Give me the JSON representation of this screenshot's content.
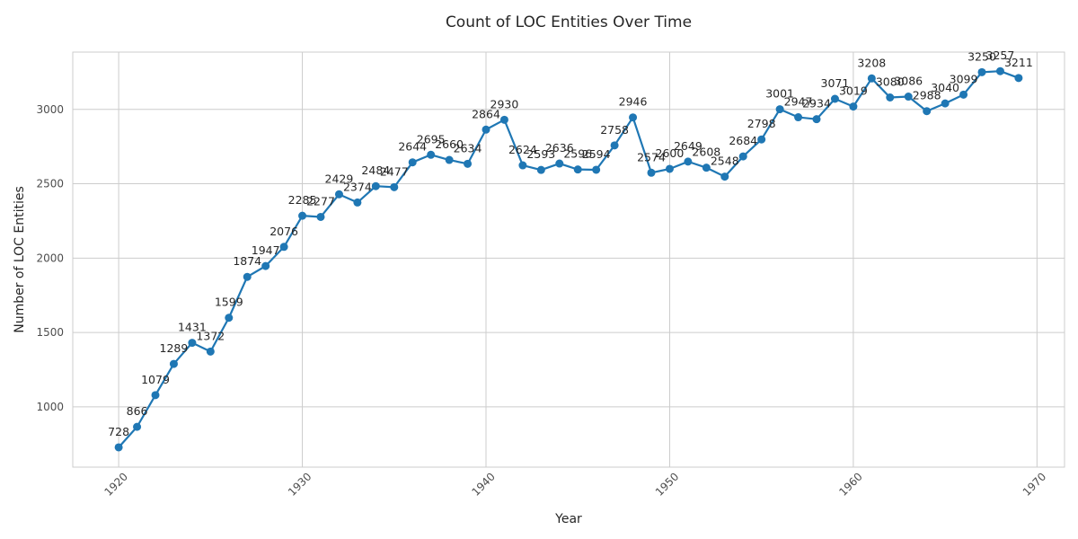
{
  "chart_data": {
    "type": "line",
    "title": "Count of LOC Entities Over Time",
    "xlabel": "Year",
    "ylabel": "Number of LOC Entities",
    "xlim": [
      1917.5,
      1971.5
    ],
    "ylim": [
      595,
      3385
    ],
    "x_ticks": [
      1920,
      1930,
      1940,
      1950,
      1960,
      1970
    ],
    "y_ticks": [
      1000,
      1500,
      2000,
      2500,
      3000
    ],
    "grid": true,
    "legend": "none",
    "color": "#1f77b4",
    "series": [
      {
        "x": [
          1920,
          1921,
          1922,
          1923,
          1924,
          1925,
          1926,
          1927,
          1928,
          1929,
          1930,
          1931,
          1932,
          1933,
          1934,
          1935,
          1936,
          1937,
          1938,
          1939,
          1940,
          1941,
          1942,
          1943,
          1944,
          1945,
          1946,
          1947,
          1948,
          1949,
          1950,
          1951,
          1952,
          1953,
          1954,
          1955,
          1956,
          1957,
          1958,
          1959,
          1960,
          1961,
          1962,
          1963,
          1964,
          1965,
          1966,
          1967,
          1968,
          1969
        ],
        "values": [
          728,
          866,
          1079,
          1289,
          1431,
          1372,
          1599,
          1874,
          1947,
          2076,
          2285,
          2277,
          2429,
          2374,
          2484,
          2477,
          2644,
          2695,
          2660,
          2634,
          2864,
          2930,
          2624,
          2593,
          2636,
          2596,
          2594,
          2758,
          2946,
          2574,
          2600,
          2649,
          2608,
          2548,
          2684,
          2798,
          3001,
          2947,
          2934,
          3071,
          3019,
          3208,
          3080,
          3086,
          2988,
          3040,
          3099,
          3250,
          3257,
          3211
        ]
      }
    ]
  }
}
